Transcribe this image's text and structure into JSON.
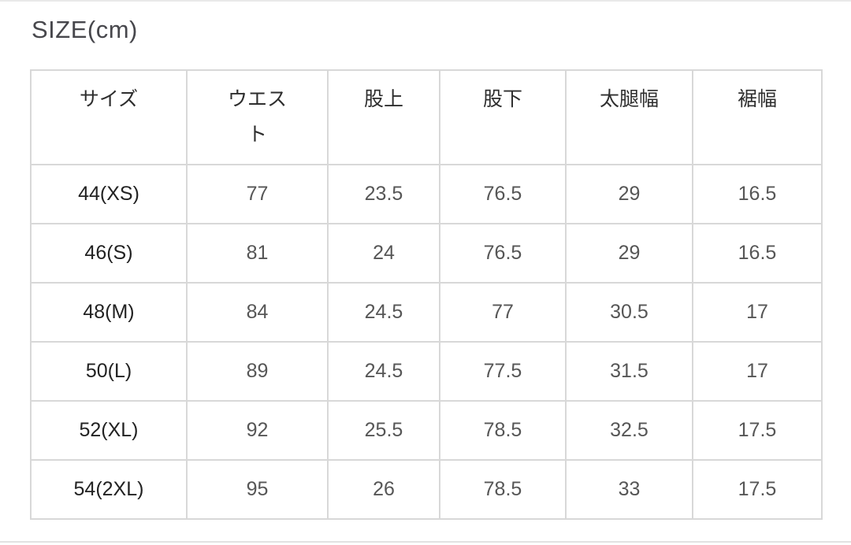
{
  "page": {
    "title": "SIZE(cm)"
  },
  "size_table": {
    "headers": [
      "サイズ",
      "ウエスト",
      "股上",
      "股下",
      "太腿幅",
      "裾幅"
    ],
    "rows": [
      [
        "44(XS)",
        "77",
        "23.5",
        "76.5",
        "29",
        "16.5"
      ],
      [
        "46(S)",
        "81",
        "24",
        "76.5",
        "29",
        "16.5"
      ],
      [
        "48(M)",
        "84",
        "24.5",
        "77",
        "30.5",
        "17"
      ],
      [
        "50(L)",
        "89",
        "24.5",
        "77.5",
        "31.5",
        "17"
      ],
      [
        "52(XL)",
        "92",
        "25.5",
        "78.5",
        "32.5",
        "17.5"
      ],
      [
        "54(2XL)",
        "95",
        "26",
        "78.5",
        "33",
        "17.5"
      ]
    ]
  },
  "colors": {
    "table_border": "#d8d8d8",
    "title_text": "#47474c",
    "header_text": "#2e2e2e",
    "size_label_text": "#222222",
    "value_text": "#565656",
    "edge_divider": "#e9e9e9"
  }
}
